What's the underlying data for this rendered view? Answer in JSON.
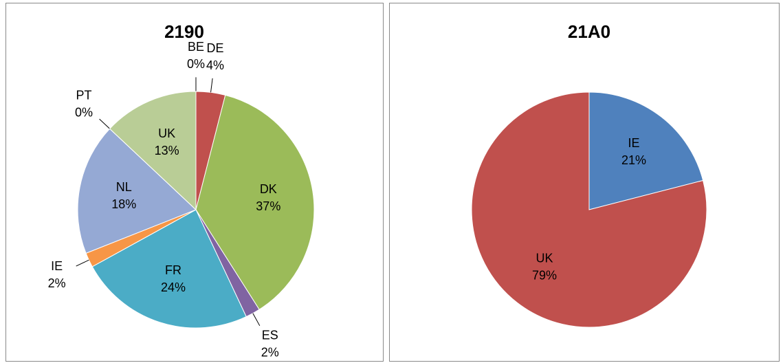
{
  "chart_data": [
    {
      "type": "pie",
      "title": "2190",
      "categories": [
        "BE",
        "DE",
        "DK",
        "ES",
        "FR",
        "IE",
        "NL",
        "PT",
        "UK"
      ],
      "values": [
        0,
        4,
        37,
        2,
        24,
        2,
        18,
        0,
        13
      ],
      "value_labels": [
        "0%",
        "4%",
        "37%",
        "2%",
        "24%",
        "2%",
        "18%",
        "0%",
        "13%"
      ],
      "colors": [
        "#4f81bd",
        "#c0504d",
        "#9bbb59",
        "#8064a2",
        "#4bacc6",
        "#f79646",
        "#95a9d4",
        "#d99694",
        "#b9cd96"
      ]
    },
    {
      "type": "pie",
      "title": "21A0",
      "categories": [
        "IE",
        "UK"
      ],
      "values": [
        21,
        79
      ],
      "value_labels": [
        "21%",
        "79%"
      ],
      "colors": [
        "#4f81bd",
        "#c0504d"
      ]
    }
  ]
}
